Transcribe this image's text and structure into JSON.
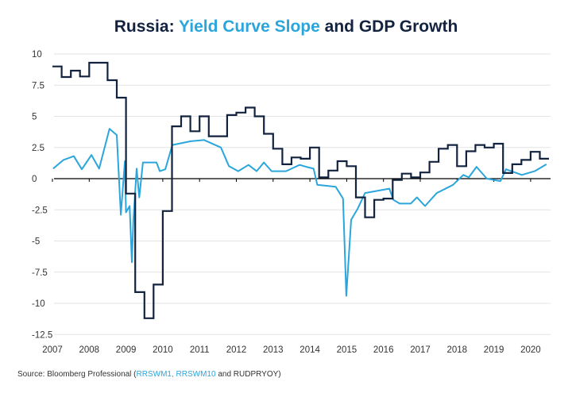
{
  "title": {
    "prefix": "Russia: ",
    "highlight": "Yield Curve Slope",
    "suffix": " and GDP Growth"
  },
  "source": {
    "prefix": "Source: Bloomberg Professional (",
    "highlight": "RRSWM1, RRSWM10",
    "suffix": " and RUDPRYOY)"
  },
  "colors": {
    "gdp": "#13233f",
    "slope": "#2aa6dc",
    "grid": "#e3e3e3",
    "axis": "#000000"
  },
  "chart_data": {
    "type": "line",
    "title": "Russia: Yield Curve Slope and GDP Growth",
    "xlabel": "",
    "ylabel": "",
    "xlim": [
      2007,
      2020.5
    ],
    "ylim": [
      -12.5,
      10
    ],
    "grid": true,
    "yticks": [
      10,
      7.5,
      5,
      2.5,
      0,
      -2.5,
      -5,
      -7.5,
      -10,
      -12.5
    ],
    "ytick_labels": [
      "10",
      "7.5",
      "5",
      "2.5",
      "0",
      "-2.5",
      "-5",
      "-7.5",
      "-10",
      "-12.5"
    ],
    "xticks": [
      2007,
      2008,
      2009,
      2010,
      2011,
      2012,
      2013,
      2014,
      2015,
      2016,
      2017,
      2018,
      2019,
      2020
    ],
    "xtick_labels": [
      "2007",
      "2008",
      "2009",
      "2010",
      "2011",
      "2012",
      "2013",
      "2014",
      "2015",
      "2016",
      "2017",
      "2018",
      "2019",
      "2020"
    ],
    "series": [
      {
        "name": "GDP Growth (RUDPRYOY)",
        "style": "step",
        "start": 2007.0,
        "step": 0.25,
        "values": [
          9.0,
          8.15,
          8.66,
          8.2,
          9.3,
          9.3,
          7.9,
          6.5,
          -1.2,
          -9.1,
          -11.2,
          -8.5,
          -2.6,
          4.2,
          5.0,
          3.8,
          5.0,
          3.4,
          3.4,
          5.1,
          5.3,
          5.7,
          5.0,
          3.6,
          2.4,
          1.15,
          1.7,
          1.6,
          2.5,
          0.1,
          0.65,
          1.4,
          1.0,
          -1.5,
          -3.1,
          -1.7,
          -1.6,
          -0.1,
          0.4,
          0.1,
          0.5,
          1.35,
          2.4,
          2.7,
          1.0,
          2.2,
          2.7,
          2.5,
          2.8,
          0.45,
          1.15,
          1.5,
          2.15,
          1.6
        ]
      },
      {
        "name": "Yield Curve Slope (RRSWM10 - RRSWM1)",
        "style": "line",
        "x": [
          2007.02,
          2007.3,
          2007.58,
          2007.8,
          2008.06,
          2008.27,
          2008.55,
          2008.75,
          2008.86,
          2008.97,
          2009.0,
          2009.1,
          2009.16,
          2009.2,
          2009.29,
          2009.36,
          2009.46,
          2009.83,
          2009.92,
          2010.07,
          2010.26,
          2010.76,
          2011.12,
          2011.58,
          2011.8,
          2012.05,
          2012.33,
          2012.55,
          2012.75,
          2012.96,
          2013.35,
          2013.72,
          2013.9,
          2014.1,
          2014.2,
          2014.7,
          2014.9,
          2014.99,
          2015.12,
          2015.3,
          2015.5,
          2016.16,
          2016.27,
          2016.44,
          2016.74,
          2016.91,
          2017.13,
          2017.45,
          2017.89,
          2018.17,
          2018.32,
          2018.53,
          2018.81,
          2019.18,
          2019.33,
          2019.76,
          2020.11,
          2020.43
        ],
        "y": [
          0.8,
          1.5,
          1.8,
          0.75,
          1.9,
          0.8,
          4.0,
          3.5,
          -2.9,
          1.4,
          -2.7,
          -2.2,
          -6.7,
          -3.3,
          0.8,
          -1.5,
          1.3,
          1.3,
          0.6,
          0.75,
          2.7,
          3.0,
          3.1,
          2.5,
          1.0,
          0.6,
          1.1,
          0.6,
          1.3,
          0.6,
          0.6,
          1.1,
          0.95,
          0.8,
          -0.5,
          -0.65,
          -1.6,
          -9.4,
          -3.3,
          -2.4,
          -1.15,
          -0.8,
          -1.7,
          -2.0,
          -2.0,
          -1.5,
          -2.2,
          -1.15,
          -0.5,
          0.3,
          0.1,
          0.95,
          0.0,
          -0.2,
          0.75,
          0.3,
          0.6,
          1.15
        ]
      }
    ]
  }
}
